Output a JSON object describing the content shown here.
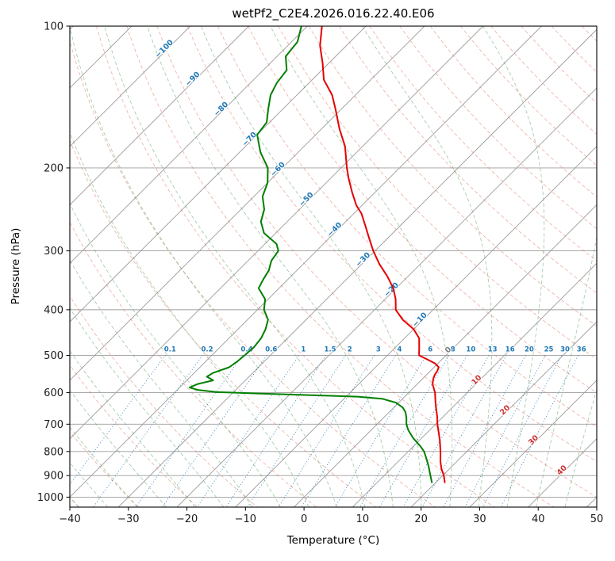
{
  "chart_data": {
    "type": "line",
    "chart_kind": "skew-t-log-p-sounding",
    "title": "wetPf2_C2E4.2026.016.22.40.E06",
    "xlabel": "Temperature (°C)",
    "ylabel": "Pressure (hPa)",
    "x_range": [
      -40,
      50
    ],
    "pressure_range_hpa": [
      100,
      1050
    ],
    "x_ticks": [
      -40,
      -30,
      -20,
      -10,
      0,
      10,
      20,
      30,
      40,
      50
    ],
    "y_ticks_hpa": [
      100,
      200,
      300,
      400,
      500,
      600,
      700,
      800,
      900,
      1000
    ],
    "skew_deg": 45,
    "grid": true,
    "isotherm_labels_c": [
      -100,
      -90,
      -80,
      -70,
      -60,
      -50,
      -40,
      -30,
      -20,
      -10,
      0,
      10,
      20,
      30,
      40
    ],
    "mixing_ratio_labels_g_kg": [
      "0.1",
      "0.2",
      "0.4",
      "0.6",
      "1",
      "1.5",
      "2",
      "3",
      "4",
      "6",
      "8",
      "10",
      "13",
      "16",
      "20",
      "25",
      "30",
      "36"
    ],
    "dry_adiabats_theta_c": {
      "start": -40,
      "end": 220,
      "step": 10
    },
    "moist_adiabats_start_c": {
      "start": -40,
      "end": 45,
      "step": 5
    },
    "colors": {
      "temperature": "#e50000",
      "dewpoint": "#007f00",
      "grid": "#9c9c9c",
      "isotherm": "#9c9c9c",
      "dry_adiabat": "#de7a66",
      "moist_adiabat": "#4f9e57",
      "mixing_ratio": "#1f77b4",
      "isotherm_label_cold": "#1f77b4",
      "isotherm_label_zero": "#7f7f7f",
      "isotherm_label_warm": "#cc3333"
    },
    "series": [
      {
        "name": "temperature",
        "color": "#e50000",
        "pressure_hpa": [
          100,
          110,
          120,
          130,
          140,
          150,
          165,
          180,
          200,
          210,
          225,
          240,
          250,
          265,
          280,
          300,
          320,
          340,
          360,
          380,
          400,
          420,
          440,
          460,
          480,
          500,
          510,
          520,
          530,
          540,
          550,
          560,
          575,
          600,
          625,
          650,
          675,
          700,
          730,
          760,
          800,
          840,
          870,
          900,
          930
        ],
        "values_c": [
          -77.5,
          -74.5,
          -71,
          -68,
          -64,
          -61,
          -57,
          -53,
          -49,
          -47,
          -44,
          -41,
          -38.7,
          -36,
          -33.5,
          -30.3,
          -27,
          -23.5,
          -20.5,
          -18.2,
          -16.4,
          -13.5,
          -10,
          -7.5,
          -6,
          -4.6,
          -2.5,
          -0.5,
          0.8,
          1.2,
          1.4,
          1.8,
          2.6,
          4.5,
          6,
          7.5,
          9,
          10.3,
          12,
          13.6,
          15.5,
          17.2,
          18.6,
          20.2,
          21.5
        ]
      },
      {
        "name": "dewpoint",
        "color": "#007f00",
        "pressure_hpa": [
          100,
          108,
          116,
          124,
          132,
          140,
          150,
          160,
          170,
          185,
          200,
          215,
          230,
          245,
          260,
          275,
          290,
          300,
          315,
          330,
          345,
          360,
          380,
          400,
          420,
          440,
          460,
          480,
          500,
          515,
          530,
          545,
          555,
          565,
          575,
          585,
          592,
          598,
          603,
          608,
          612,
          618,
          630,
          645,
          660,
          680,
          700,
          720,
          750,
          780,
          800,
          830,
          860,
          900,
          930
        ],
        "values_c": [
          -81,
          -79,
          -78.5,
          -76,
          -75.5,
          -74.5,
          -72.5,
          -70.5,
          -70,
          -66.5,
          -62.5,
          -60,
          -58.5,
          -56,
          -54.5,
          -52,
          -48,
          -46.5,
          -46,
          -44.8,
          -44.2,
          -43.5,
          -40.5,
          -38.9,
          -36.5,
          -35.3,
          -34.5,
          -34.2,
          -34.4,
          -34.6,
          -35,
          -36.8,
          -37.2,
          -35.5,
          -37.5,
          -38.3,
          -36.5,
          -33,
          -25,
          -15,
          -8,
          -3.5,
          -0.5,
          1.5,
          2.8,
          4,
          5,
          6.3,
          8.6,
          11.2,
          12.7,
          14.4,
          16,
          17.9,
          19.3
        ]
      }
    ]
  }
}
